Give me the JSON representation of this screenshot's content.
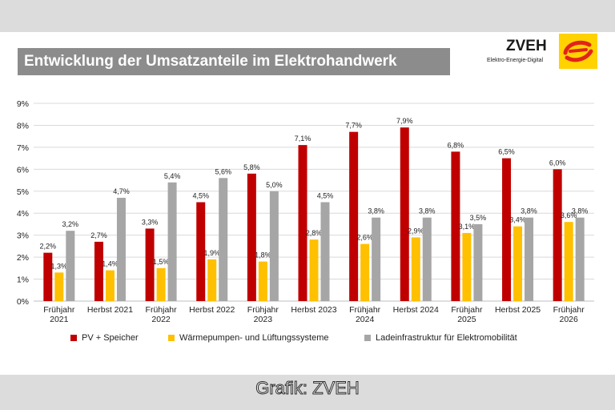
{
  "header": {
    "title": "Entwicklung der Umsatzanteile im Elektrohandwerk",
    "logo_text": "ZVEH",
    "logo_subtitle": "Elektro-Energie-Digital",
    "logo_icon": "zveh-logo-icon"
  },
  "caption": "Grafik: ZVEH",
  "colors": {
    "pv": "#c00000",
    "waerme": "#ffc000",
    "lade": "#a6a6a6",
    "title_bar": "#8c8c8c",
    "bands": "#dcdcdc"
  },
  "chart_data": {
    "type": "bar",
    "title": "Entwicklung der Umsatzanteile im Elektrohandwerk",
    "xlabel": "",
    "ylabel": "",
    "ylim": [
      0,
      9
    ],
    "y_ticks": [
      "0%",
      "1%",
      "2%",
      "3%",
      "4%",
      "5%",
      "6%",
      "7%",
      "8%",
      "9%"
    ],
    "categories": [
      [
        "Frühjahr",
        "2021"
      ],
      [
        "Herbst 2021"
      ],
      [
        "Frühjahr",
        "2022"
      ],
      [
        "Herbst 2022"
      ],
      [
        "Frühjahr",
        "2023"
      ],
      [
        "Herbst 2023"
      ],
      [
        "Frühjahr",
        "2024"
      ],
      [
        "Herbst 2024"
      ],
      [
        "Frühjahr",
        "2025"
      ],
      [
        "Herbst 2025"
      ],
      [
        "Frühjahr",
        "2026"
      ]
    ],
    "series": [
      {
        "name": "PV + Speicher",
        "color": "#c00000",
        "values": [
          2.2,
          2.7,
          3.3,
          4.5,
          5.8,
          7.1,
          7.7,
          7.9,
          6.8,
          6.5,
          6.0
        ],
        "labels": [
          "2,2%",
          "2,7%",
          "3,3%",
          "4,5%",
          "5,8%",
          "7,1%",
          "7,7%",
          "7,9%",
          "6,8%",
          "6,5%",
          "6,0%"
        ]
      },
      {
        "name": "Wärmepumpen- und Lüftungssysteme",
        "color": "#ffc000",
        "values": [
          1.3,
          1.4,
          1.5,
          1.9,
          1.8,
          2.8,
          2.6,
          2.9,
          3.1,
          3.4,
          3.6
        ],
        "labels": [
          "1,3%",
          "1,4%",
          "1,5%",
          "1,9%",
          "1,8%",
          "2,8%",
          "2,6%",
          "2,9%",
          "3,1%",
          "3,4%",
          "3,6%"
        ]
      },
      {
        "name": "Ladeinfrastruktur für Elektromobilität",
        "color": "#a6a6a6",
        "values": [
          3.2,
          4.7,
          5.4,
          5.6,
          5.0,
          4.5,
          3.8,
          3.8,
          3.5,
          3.8,
          3.8
        ],
        "labels": [
          "3,2%",
          "4,7%",
          "5,4%",
          "5,6%",
          "5,0%",
          "4,5%",
          "3,8%",
          "3,8%",
          "3,5%",
          "3,8%",
          "3,8%"
        ]
      }
    ],
    "grid": true,
    "legend_position": "bottom"
  }
}
